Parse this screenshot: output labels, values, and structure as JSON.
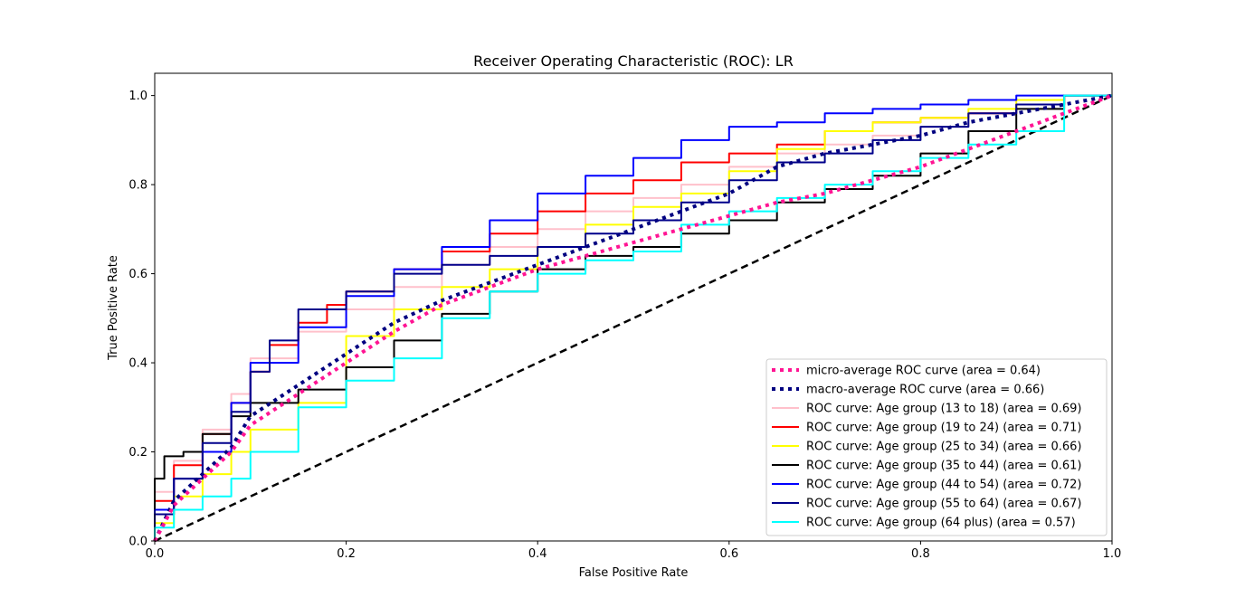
{
  "chart_data": {
    "type": "line",
    "title": "Receiver Operating Characteristic (ROC): LR",
    "xlabel": "False Positive Rate",
    "ylabel": "True Positive Rate",
    "xlim": [
      0.0,
      1.0
    ],
    "ylim": [
      0.0,
      1.05
    ],
    "xticks": [
      "0.0",
      "0.2",
      "0.4",
      "0.6",
      "0.8",
      "1.0"
    ],
    "yticks": [
      "0.0",
      "0.2",
      "0.4",
      "0.6",
      "0.8",
      "1.0"
    ],
    "grid": false,
    "legend_position": "lower-right",
    "chance_line": {
      "color": "#000000",
      "style": "dashed",
      "x": [
        0,
        1
      ],
      "y": [
        0,
        1
      ]
    },
    "series": [
      {
        "name": "micro-average ROC curve (area = 0.64)",
        "color": "#ff1493",
        "style": "dotted",
        "x": [
          0,
          0.02,
          0.05,
          0.08,
          0.1,
          0.15,
          0.2,
          0.25,
          0.3,
          0.35,
          0.4,
          0.45,
          0.5,
          0.55,
          0.6,
          0.65,
          0.7,
          0.75,
          0.8,
          0.85,
          0.9,
          0.95,
          1.0
        ],
        "y": [
          0,
          0.08,
          0.14,
          0.2,
          0.26,
          0.33,
          0.4,
          0.47,
          0.53,
          0.57,
          0.61,
          0.64,
          0.67,
          0.7,
          0.73,
          0.76,
          0.78,
          0.81,
          0.84,
          0.88,
          0.92,
          0.96,
          1.0
        ]
      },
      {
        "name": "macro-average ROC curve (area = 0.66)",
        "color": "#000080",
        "style": "dotted",
        "x": [
          0,
          0.02,
          0.05,
          0.08,
          0.1,
          0.15,
          0.2,
          0.25,
          0.3,
          0.35,
          0.4,
          0.45,
          0.5,
          0.55,
          0.6,
          0.65,
          0.7,
          0.75,
          0.8,
          0.85,
          0.9,
          0.95,
          1.0
        ],
        "y": [
          0,
          0.09,
          0.15,
          0.21,
          0.28,
          0.35,
          0.42,
          0.49,
          0.54,
          0.58,
          0.62,
          0.66,
          0.7,
          0.74,
          0.78,
          0.84,
          0.87,
          0.89,
          0.91,
          0.94,
          0.96,
          0.98,
          1.0
        ]
      },
      {
        "name": "ROC curve: Age group (13 to 18) (area = 0.69)",
        "color": "#ffc0cb",
        "style": "solid",
        "x": [
          0,
          0.02,
          0.05,
          0.08,
          0.1,
          0.15,
          0.2,
          0.25,
          0.3,
          0.35,
          0.4,
          0.45,
          0.5,
          0.55,
          0.6,
          0.65,
          0.7,
          0.75,
          0.8,
          0.85,
          0.9,
          0.95,
          1.0
        ],
        "y": [
          0,
          0.11,
          0.18,
          0.25,
          0.33,
          0.41,
          0.47,
          0.52,
          0.57,
          0.62,
          0.66,
          0.7,
          0.74,
          0.77,
          0.8,
          0.84,
          0.87,
          0.89,
          0.91,
          0.93,
          0.96,
          0.98,
          1.0
        ]
      },
      {
        "name": "ROC curve: Age group (19 to 24) (area = 0.71)",
        "color": "#ff0000",
        "style": "solid",
        "x": [
          0,
          0.02,
          0.05,
          0.08,
          0.1,
          0.12,
          0.15,
          0.18,
          0.2,
          0.25,
          0.3,
          0.35,
          0.4,
          0.45,
          0.5,
          0.55,
          0.6,
          0.65,
          0.7,
          0.75,
          0.8,
          0.85,
          0.9,
          0.95,
          1.0
        ],
        "y": [
          0,
          0.09,
          0.17,
          0.24,
          0.31,
          0.38,
          0.44,
          0.49,
          0.53,
          0.56,
          0.61,
          0.65,
          0.69,
          0.74,
          0.78,
          0.81,
          0.85,
          0.87,
          0.89,
          0.92,
          0.94,
          0.95,
          0.96,
          0.98,
          1.0
        ]
      },
      {
        "name": "ROC curve: Age group (25 to 34) (area = 0.66)",
        "color": "#ffff00",
        "style": "solid",
        "x": [
          0,
          0.02,
          0.05,
          0.08,
          0.1,
          0.15,
          0.2,
          0.25,
          0.3,
          0.35,
          0.4,
          0.45,
          0.5,
          0.55,
          0.6,
          0.65,
          0.7,
          0.75,
          0.8,
          0.85,
          0.9,
          0.95,
          1.0
        ],
        "y": [
          0,
          0.04,
          0.1,
          0.15,
          0.2,
          0.25,
          0.31,
          0.46,
          0.52,
          0.57,
          0.61,
          0.66,
          0.71,
          0.75,
          0.78,
          0.83,
          0.88,
          0.92,
          0.94,
          0.95,
          0.97,
          0.99,
          1.0
        ]
      },
      {
        "name": "ROC curve: Age group (35 to 44) (area = 0.61)",
        "color": "#000000",
        "style": "solid",
        "x": [
          0,
          0.01,
          0.03,
          0.05,
          0.08,
          0.1,
          0.15,
          0.2,
          0.25,
          0.3,
          0.35,
          0.4,
          0.45,
          0.5,
          0.55,
          0.6,
          0.65,
          0.7,
          0.75,
          0.8,
          0.85,
          0.9,
          0.95,
          1.0
        ],
        "y": [
          0,
          0.14,
          0.19,
          0.2,
          0.24,
          0.28,
          0.31,
          0.34,
          0.39,
          0.45,
          0.51,
          0.56,
          0.61,
          0.64,
          0.66,
          0.69,
          0.72,
          0.76,
          0.79,
          0.82,
          0.87,
          0.92,
          0.97,
          1.0
        ]
      },
      {
        "name": "ROC curve: Age group (44 to 54) (area = 0.72)",
        "color": "#0000ff",
        "style": "solid",
        "x": [
          0,
          0.02,
          0.05,
          0.08,
          0.1,
          0.15,
          0.2,
          0.25,
          0.3,
          0.35,
          0.4,
          0.45,
          0.5,
          0.55,
          0.6,
          0.65,
          0.7,
          0.75,
          0.8,
          0.85,
          0.9,
          0.95,
          1.0
        ],
        "y": [
          0,
          0.07,
          0.14,
          0.2,
          0.31,
          0.4,
          0.48,
          0.55,
          0.61,
          0.66,
          0.72,
          0.78,
          0.82,
          0.86,
          0.9,
          0.93,
          0.94,
          0.96,
          0.97,
          0.98,
          0.99,
          1.0,
          1.0
        ]
      },
      {
        "name": "ROC curve: Age group (55 to 64) (area = 0.67)",
        "color": "#00008b",
        "style": "solid",
        "x": [
          0,
          0.02,
          0.05,
          0.08,
          0.1,
          0.12,
          0.15,
          0.2,
          0.25,
          0.3,
          0.35,
          0.4,
          0.45,
          0.5,
          0.55,
          0.6,
          0.65,
          0.7,
          0.75,
          0.8,
          0.85,
          0.9,
          0.95,
          1.0
        ],
        "y": [
          0,
          0.06,
          0.14,
          0.22,
          0.29,
          0.38,
          0.45,
          0.52,
          0.56,
          0.6,
          0.62,
          0.64,
          0.66,
          0.69,
          0.72,
          0.76,
          0.81,
          0.85,
          0.87,
          0.9,
          0.93,
          0.96,
          0.98,
          1.0
        ]
      },
      {
        "name": "ROC curve: Age group (64 plus) (area = 0.57)",
        "color": "#00ffff",
        "style": "solid",
        "x": [
          0,
          0.02,
          0.05,
          0.08,
          0.1,
          0.15,
          0.2,
          0.25,
          0.3,
          0.35,
          0.4,
          0.45,
          0.5,
          0.55,
          0.6,
          0.65,
          0.7,
          0.75,
          0.8,
          0.85,
          0.9,
          0.95,
          1.0
        ],
        "y": [
          0,
          0.03,
          0.07,
          0.1,
          0.14,
          0.2,
          0.3,
          0.36,
          0.41,
          0.5,
          0.56,
          0.6,
          0.63,
          0.65,
          0.71,
          0.74,
          0.77,
          0.8,
          0.83,
          0.86,
          0.89,
          0.92,
          1.0
        ]
      }
    ]
  }
}
